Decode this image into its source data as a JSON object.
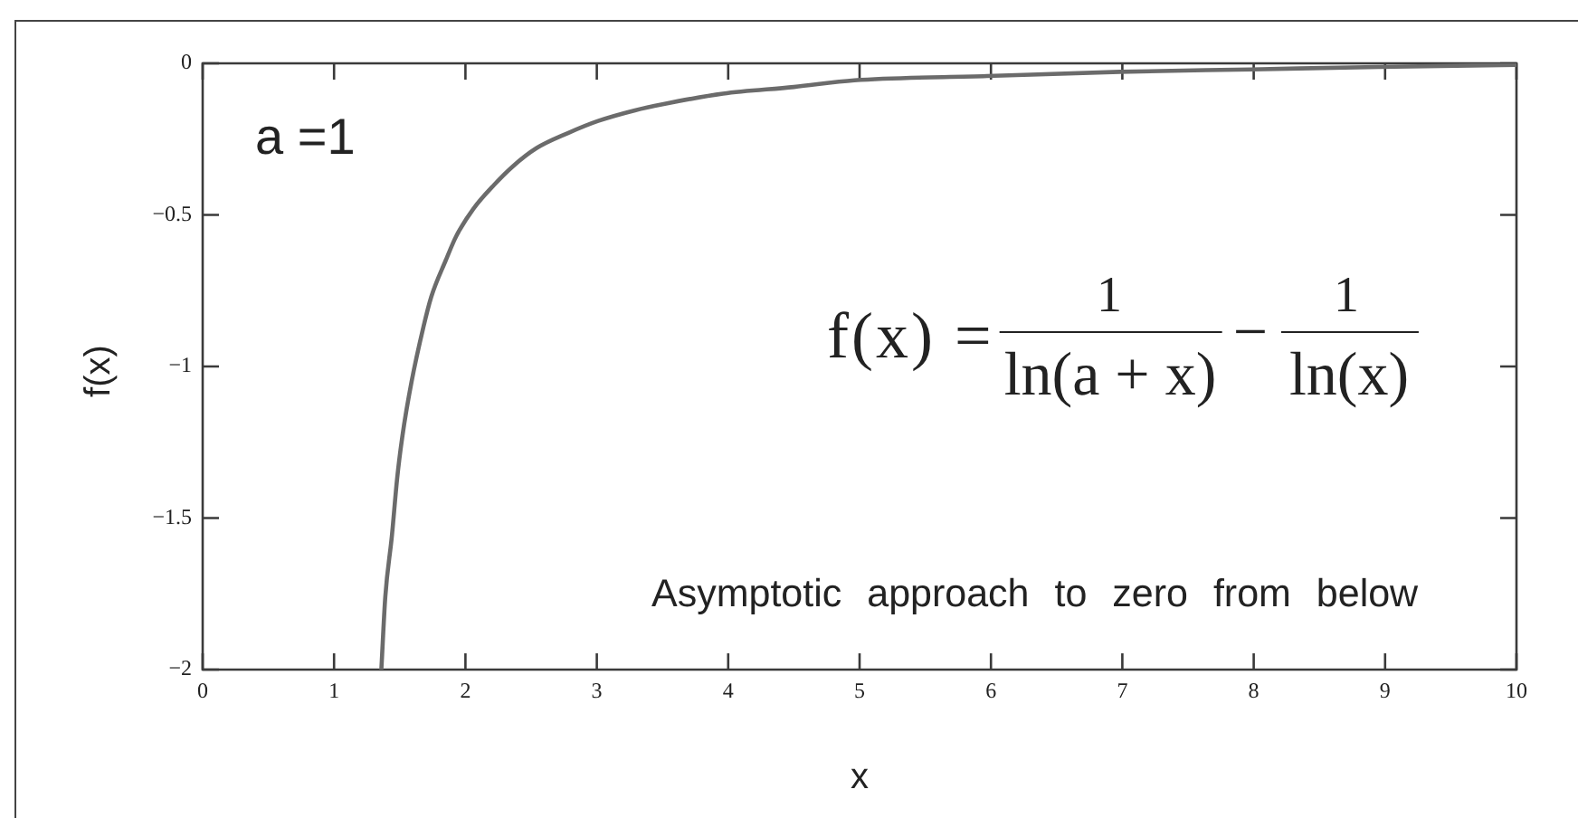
{
  "chart_data": {
    "type": "line",
    "xlabel": "x",
    "ylabel": "f(x)",
    "annotations": [
      "a =1",
      "f(x) =",
      "1",
      "ln(a + x)",
      "−",
      "1",
      "ln(x)",
      "Asymptotic approach to zero from below"
    ],
    "x": [
      1.36,
      1.39,
      1.44,
      1.48,
      1.52,
      1.59,
      1.68,
      1.74,
      1.85,
      1.93,
      2.06,
      2.22,
      2.36,
      2.54,
      2.78,
      3.01,
      3.29,
      3.5,
      3.96,
      4.5,
      4.96,
      5.97,
      6.98,
      7.98,
      8.95,
      10
    ],
    "series": [
      {
        "color": "#6b6b6b",
        "values": [
          -2,
          -1.76,
          -1.56,
          -1.37,
          -1.23,
          -1.05,
          -0.87,
          -0.77,
          -0.65,
          -0.57,
          -0.48,
          -0.4,
          -0.34,
          -0.28,
          -0.23,
          -0.19,
          -0.155,
          -0.135,
          -0.1,
          -0.078,
          -0.056,
          -0.042,
          -0.028,
          -0.02,
          -0.012,
          -0.005
        ]
      }
    ],
    "xlim": [
      0,
      10
    ],
    "ylim": [
      -2,
      0
    ],
    "xticks": [
      0,
      1,
      2,
      3,
      4,
      5,
      6,
      7,
      8,
      9,
      10
    ],
    "yticks": [
      0,
      {
        "value": -0.5,
        "label": "−0.5"
      },
      {
        "value": -1,
        "label": "−1"
      },
      {
        "value": -1.5,
        "label": "−1.5"
      },
      {
        "value": -2,
        "label": "−2"
      }
    ],
    "marker": "none",
    "line_style": "solid"
  }
}
